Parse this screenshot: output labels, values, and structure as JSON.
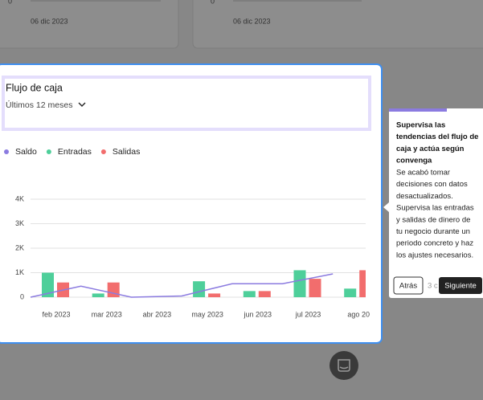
{
  "background_cards": [
    {
      "tick": "0",
      "date": "06 dic 2023"
    },
    {
      "tick": "0",
      "date": "06 dic 2023"
    }
  ],
  "card": {
    "title": "Flujo de caja",
    "period": "Últimos 12 meses",
    "chart": {
      "type": "bar_line",
      "categories": [
        "feb 2023",
        "mar 2023",
        "abr 2023",
        "may 2023",
        "jun 2023",
        "jul 2023",
        "ago 20"
      ],
      "series": [
        {
          "name": "Saldo",
          "color": "#8b7be0",
          "kind": "line",
          "values": [
            0,
            450,
            0,
            50,
            550,
            550,
            950
          ]
        },
        {
          "name": "Entradas",
          "color": "#4ecf9a",
          "kind": "bar",
          "values": [
            1000,
            150,
            0,
            650,
            250,
            1100,
            350
          ]
        },
        {
          "name": "Salidas",
          "color": "#f26d6d",
          "kind": "bar",
          "values": [
            600,
            600,
            0,
            150,
            250,
            750,
            1100
          ]
        }
      ],
      "ylim": [
        0,
        4000
      ],
      "yticks": [
        0,
        {
          "value": 1000,
          "label": "1K"
        },
        {
          "value": 2000,
          "label": "2K"
        },
        {
          "value": 3000,
          "label": "3K"
        },
        {
          "value": 4000,
          "label": "4K"
        }
      ],
      "grid": true
    }
  },
  "tooltip": {
    "title": [
      "Supervisa las",
      "tendencias del flujo de",
      "caja y actúa según",
      "convenga"
    ],
    "body": [
      "Se acabó tomar",
      "decisiones con datos",
      "desactualizados.",
      "Supervisa las entradas",
      "y salidas de dinero de",
      "tu negocio durante un",
      "periodo concreto y haz",
      "los ajustes necesarios."
    ],
    "back": "Atrás",
    "step": "3 c",
    "next": "Siguiente"
  }
}
